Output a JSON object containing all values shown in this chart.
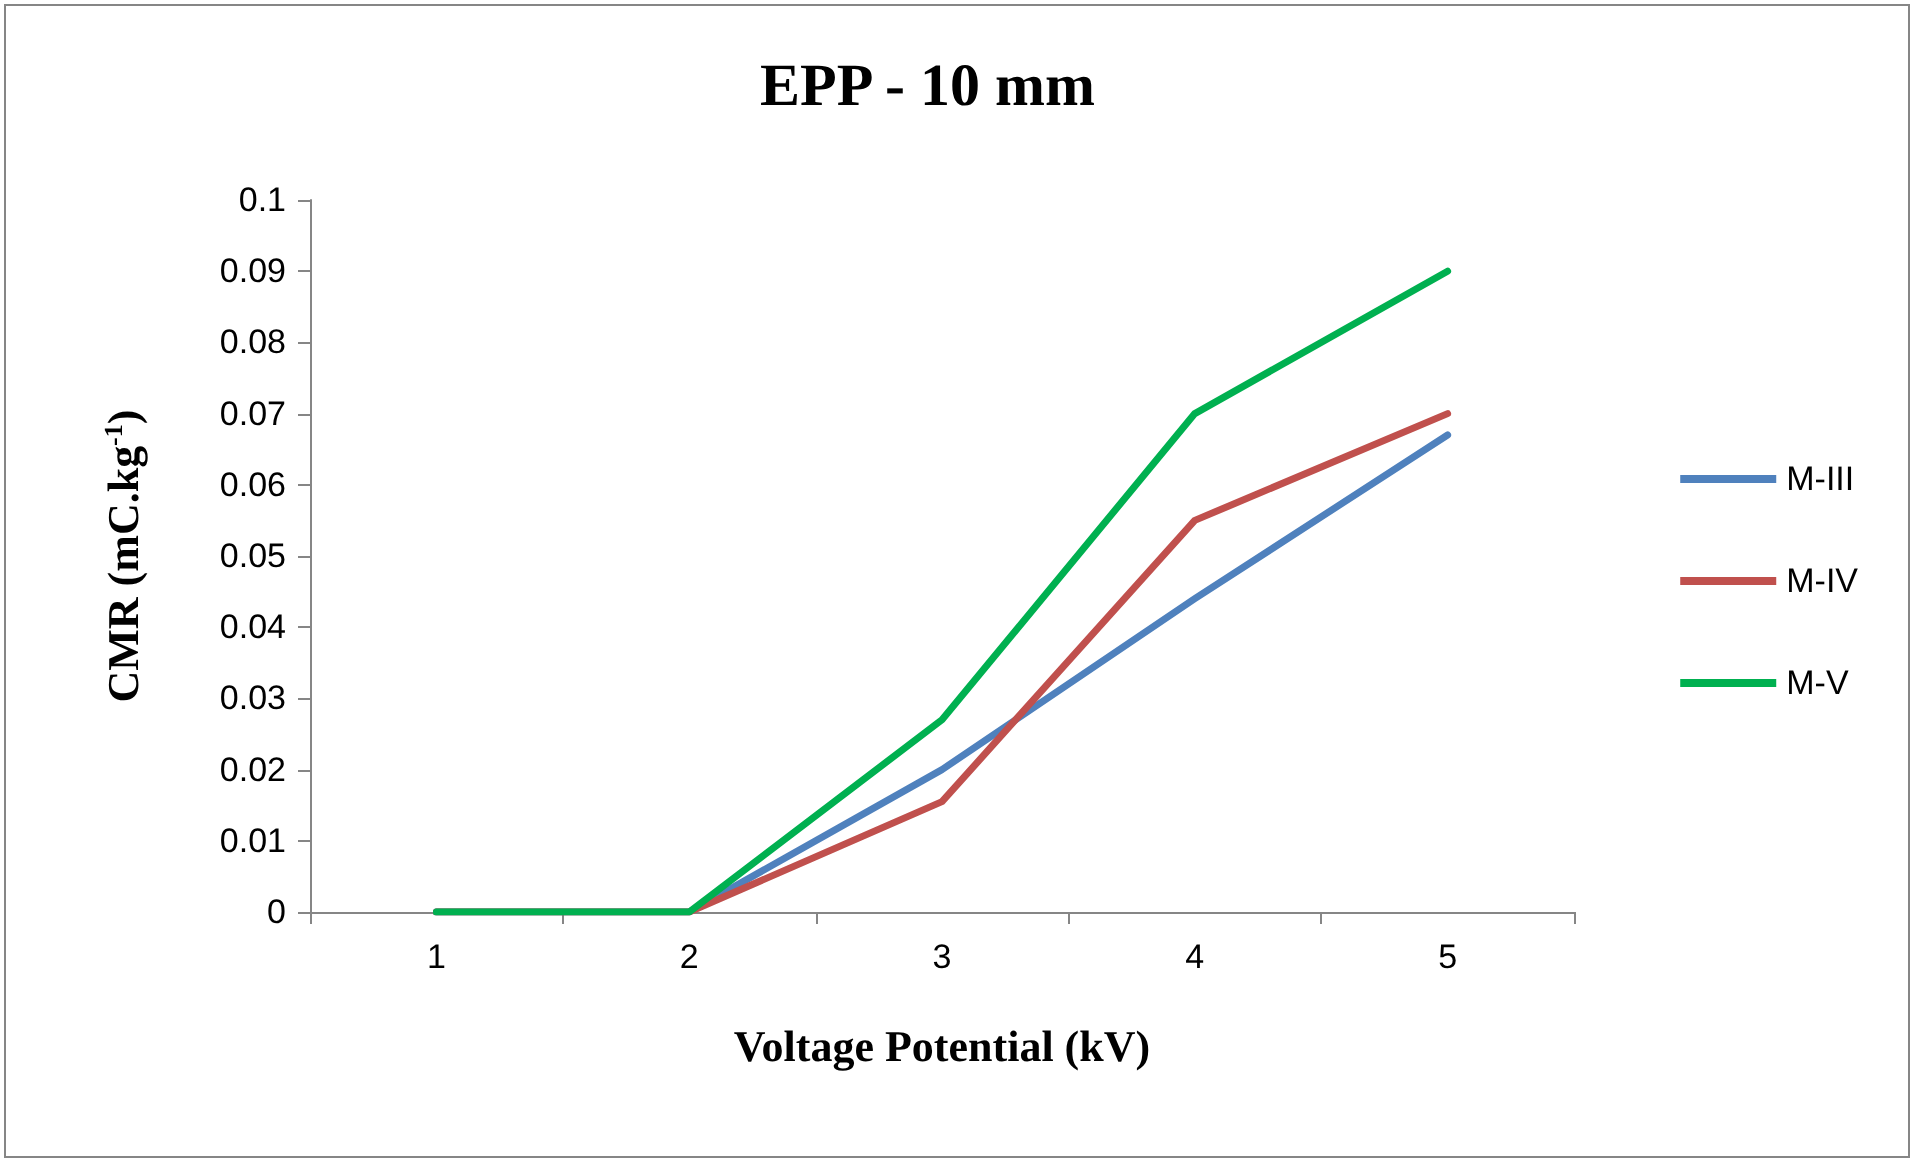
{
  "chart_data": {
    "type": "line",
    "title": "EPP - 10 mm",
    "xlabel": "Voltage Potential (kV)",
    "ylabel": "CMR (mC.kg$^{-1}$)",
    "categories": [
      "1",
      "2",
      "3",
      "4",
      "5"
    ],
    "series": [
      {
        "name": "M-III",
        "color": "#4f81bd",
        "values": [
          0,
          0,
          0.02,
          0.044,
          0.067
        ]
      },
      {
        "name": "M-IV",
        "color": "#c0504d",
        "values": [
          0,
          0,
          0.0155,
          0.055,
          0.07
        ]
      },
      {
        "name": "M-V",
        "color": "#00b050",
        "values": [
          0,
          0,
          0.027,
          0.07,
          0.09
        ]
      }
    ],
    "ylim": [
      0,
      0.1
    ],
    "yticks": [
      0,
      0.01,
      0.02,
      0.03,
      0.04,
      0.05,
      0.06,
      0.07,
      0.08,
      0.09,
      0.1
    ],
    "grid": false,
    "legend": "right",
    "marker": "none",
    "line_style": "solid"
  }
}
